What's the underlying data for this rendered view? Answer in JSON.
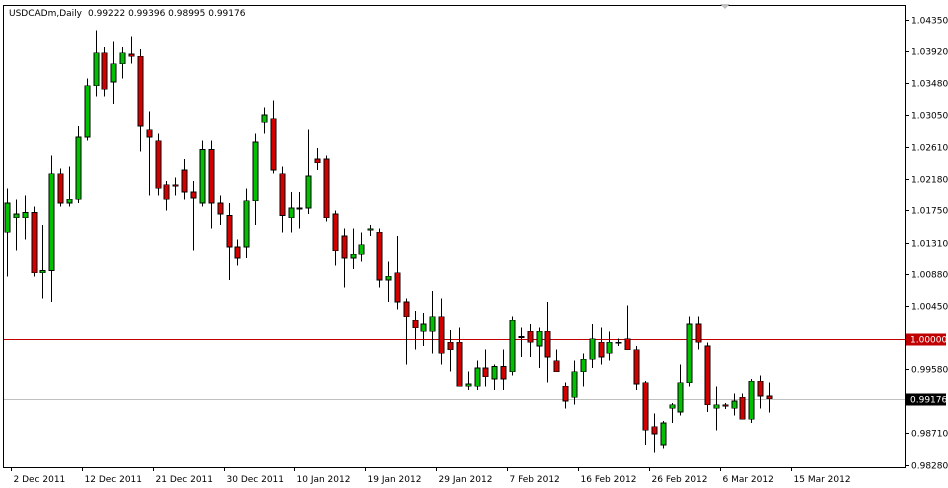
{
  "header": {
    "symbol": "USDCADm,Daily",
    "ohlc": "0.99222 0.99396 0.98995 0.99176"
  },
  "colors": {
    "background": "#ffffff",
    "bull": "#00c000",
    "bear": "#d40000",
    "wick": "#000000",
    "parity_line": "#c00000",
    "current_line": "#c0c0c0",
    "axis": "#000000"
  },
  "chart_data": {
    "type": "candlestick",
    "ylim": [
      0.9825,
      1.0455
    ],
    "y_ticks": [
      "1.04350",
      "1.03920",
      "1.03480",
      "1.03050",
      "1.02610",
      "1.02180",
      "1.01750",
      "1.01310",
      "1.00880",
      "1.00450",
      "0.99580",
      "0.98710",
      "0.98280"
    ],
    "x_labels": [
      {
        "text": "2 Dec 2011",
        "index": 1
      },
      {
        "text": "12 Dec 2011",
        "index": 9
      },
      {
        "text": "21 Dec 2011",
        "index": 17
      },
      {
        "text": "30 Dec 2011",
        "index": 25
      },
      {
        "text": "10 Jan 2012",
        "index": 33
      },
      {
        "text": "19 Jan 2012",
        "index": 41
      },
      {
        "text": "29 Jan 2012",
        "index": 49
      },
      {
        "text": "7 Feb 2012",
        "index": 57
      },
      {
        "text": "16 Feb 2012",
        "index": 65
      },
      {
        "text": "26 Feb 2012",
        "index": 73
      },
      {
        "text": "6 Mar 2012",
        "index": 81
      },
      {
        "text": "15 Mar 2012",
        "index": 89
      }
    ],
    "parity_level": {
      "value": 1.0,
      "label": "1.00000"
    },
    "current_price": {
      "value": 0.99176,
      "label": "0.99176"
    },
    "candles": [
      {
        "o": 1.0145,
        "h": 1.0205,
        "l": 1.0085,
        "c": 1.0185
      },
      {
        "o": 1.0165,
        "h": 1.019,
        "l": 1.012,
        "c": 1.017
      },
      {
        "o": 1.0165,
        "h": 1.0195,
        "l": 1.0135,
        "c": 1.0172
      },
      {
        "o": 1.0172,
        "h": 1.018,
        "l": 1.0085,
        "c": 1.009
      },
      {
        "o": 1.009,
        "h": 1.0155,
        "l": 1.0055,
        "c": 1.0093
      },
      {
        "o": 1.0093,
        "h": 1.025,
        "l": 1.005,
        "c": 1.0225
      },
      {
        "o": 1.0225,
        "h": 1.0232,
        "l": 1.018,
        "c": 1.0185
      },
      {
        "o": 1.0185,
        "h": 1.0235,
        "l": 1.018,
        "c": 1.019
      },
      {
        "o": 1.019,
        "h": 1.029,
        "l": 1.0185,
        "c": 1.0275
      },
      {
        "o": 1.0275,
        "h": 1.0355,
        "l": 1.027,
        "c": 1.0345
      },
      {
        "o": 1.0345,
        "h": 1.042,
        "l": 1.033,
        "c": 1.039
      },
      {
        "o": 1.039,
        "h": 1.0398,
        "l": 1.033,
        "c": 1.034
      },
      {
        "o": 1.035,
        "h": 1.0405,
        "l": 1.032,
        "c": 1.0375
      },
      {
        "o": 1.0375,
        "h": 1.0398,
        "l": 1.0355,
        "c": 1.039
      },
      {
        "o": 1.0388,
        "h": 1.0412,
        "l": 1.0375,
        "c": 1.0385
      },
      {
        "o": 1.0385,
        "h": 1.0395,
        "l": 1.0255,
        "c": 1.029
      },
      {
        "o": 1.0285,
        "h": 1.031,
        "l": 1.0195,
        "c": 1.0275
      },
      {
        "o": 1.027,
        "h": 1.028,
        "l": 1.0195,
        "c": 1.0205
      },
      {
        "o": 1.021,
        "h": 1.0215,
        "l": 1.0175,
        "c": 1.019
      },
      {
        "o": 1.021,
        "h": 1.022,
        "l": 1.0195,
        "c": 1.0208
      },
      {
        "o": 1.023,
        "h": 1.0245,
        "l": 1.019,
        "c": 1.02
      },
      {
        "o": 1.02,
        "h": 1.0215,
        "l": 1.012,
        "c": 1.0192
      },
      {
        "o": 1.0185,
        "h": 1.027,
        "l": 1.018,
        "c": 1.0258
      },
      {
        "o": 1.0258,
        "h": 1.027,
        "l": 1.015,
        "c": 1.0185
      },
      {
        "o": 1.0185,
        "h": 1.0195,
        "l": 1.0155,
        "c": 1.017
      },
      {
        "o": 1.0168,
        "h": 1.0185,
        "l": 1.008,
        "c": 1.0125
      },
      {
        "o": 1.0125,
        "h": 1.0135,
        "l": 1.01,
        "c": 1.011
      },
      {
        "o": 1.0125,
        "h": 1.0205,
        "l": 1.011,
        "c": 1.0188
      },
      {
        "o": 1.0188,
        "h": 1.028,
        "l": 1.0155,
        "c": 1.0268
      },
      {
        "o": 1.0295,
        "h": 1.0315,
        "l": 1.028,
        "c": 1.0305
      },
      {
        "o": 1.03,
        "h": 1.0325,
        "l": 1.0225,
        "c": 1.023
      },
      {
        "o": 1.0225,
        "h": 1.0235,
        "l": 1.0145,
        "c": 1.0168
      },
      {
        "o": 1.0165,
        "h": 1.02,
        "l": 1.0145,
        "c": 1.0178
      },
      {
        "o": 1.0178,
        "h": 1.02,
        "l": 1.015,
        "c": 1.0178
      },
      {
        "o": 1.0178,
        "h": 1.0285,
        "l": 1.017,
        "c": 1.0222
      },
      {
        "o": 1.0245,
        "h": 1.026,
        "l": 1.023,
        "c": 1.024
      },
      {
        "o": 1.0245,
        "h": 1.025,
        "l": 1.016,
        "c": 1.0165
      },
      {
        "o": 1.017,
        "h": 1.0175,
        "l": 1.01,
        "c": 1.012
      },
      {
        "o": 1.014,
        "h": 1.015,
        "l": 1.007,
        "c": 1.011
      },
      {
        "o": 1.011,
        "h": 1.015,
        "l": 1.0095,
        "c": 1.0115
      },
      {
        "o": 1.0115,
        "h": 1.0145,
        "l": 1.0105,
        "c": 1.0128
      },
      {
        "o": 1.0148,
        "h": 1.0155,
        "l": 1.014,
        "c": 1.015
      },
      {
        "o": 1.0145,
        "h": 1.015,
        "l": 1.007,
        "c": 1.008
      },
      {
        "o": 1.008,
        "h": 1.0105,
        "l": 1.005,
        "c": 1.0085
      },
      {
        "o": 1.009,
        "h": 1.014,
        "l": 1.004,
        "c": 1.005
      },
      {
        "o": 1.005,
        "h": 1.0055,
        "l": 0.9965,
        "c": 1.003
      },
      {
        "o": 1.0025,
        "h": 1.0038,
        "l": 0.9985,
        "c": 1.0015
      },
      {
        "o": 1.001,
        "h": 1.0035,
        "l": 0.999,
        "c": 1.002
      },
      {
        "o": 1.001,
        "h": 1.0065,
        "l": 0.998,
        "c": 1.003
      },
      {
        "o": 1.003,
        "h": 1.0055,
        "l": 0.9965,
        "c": 0.998
      },
      {
        "o": 0.9995,
        "h": 1.0012,
        "l": 0.9955,
        "c": 0.9985
      },
      {
        "o": 0.9995,
        "h": 1.0015,
        "l": 0.9935,
        "c": 0.9935
      },
      {
        "o": 0.9935,
        "h": 0.9955,
        "l": 0.993,
        "c": 0.9938
      },
      {
        "o": 0.9935,
        "h": 0.997,
        "l": 0.993,
        "c": 0.996
      },
      {
        "o": 0.996,
        "h": 0.9985,
        "l": 0.9935,
        "c": 0.9948
      },
      {
        "o": 0.9945,
        "h": 0.9965,
        "l": 0.993,
        "c": 0.9962
      },
      {
        "o": 0.9962,
        "h": 0.9985,
        "l": 0.993,
        "c": 0.9945
      },
      {
        "o": 0.9955,
        "h": 1.003,
        "l": 0.995,
        "c": 1.0025
      },
      {
        "o": 1.0003,
        "h": 1.0015,
        "l": 0.9975,
        "c": 1.0003
      },
      {
        "o": 1.001,
        "h": 1.002,
        "l": 0.9975,
        "c": 0.9995
      },
      {
        "o": 0.999,
        "h": 1.0015,
        "l": 0.996,
        "c": 1.001
      },
      {
        "o": 1.001,
        "h": 1.005,
        "l": 0.994,
        "c": 0.9975
      },
      {
        "o": 0.997,
        "h": 0.9985,
        "l": 0.9955,
        "c": 0.9955
      },
      {
        "o": 0.9935,
        "h": 0.994,
        "l": 0.9905,
        "c": 0.9915
      },
      {
        "o": 0.992,
        "h": 0.997,
        "l": 0.991,
        "c": 0.9955
      },
      {
        "o": 0.9955,
        "h": 0.998,
        "l": 0.9935,
        "c": 0.9972
      },
      {
        "o": 0.9972,
        "h": 1.002,
        "l": 0.996,
        "c": 1.0
      },
      {
        "o": 0.9995,
        "h": 1.0015,
        "l": 0.9965,
        "c": 0.9975
      },
      {
        "o": 0.998,
        "h": 1.001,
        "l": 0.997,
        "c": 0.9995
      },
      {
        "o": 0.9995,
        "h": 1.0,
        "l": 0.999,
        "c": 0.9995
      },
      {
        "o": 1.0,
        "h": 1.0045,
        "l": 0.9985,
        "c": 0.9985
      },
      {
        "o": 0.9985,
        "h": 0.999,
        "l": 0.993,
        "c": 0.9938
      },
      {
        "o": 0.994,
        "h": 0.9942,
        "l": 0.9855,
        "c": 0.9875
      },
      {
        "o": 0.988,
        "h": 0.9898,
        "l": 0.9845,
        "c": 0.987
      },
      {
        "o": 0.9855,
        "h": 0.9888,
        "l": 0.985,
        "c": 0.9885
      },
      {
        "o": 0.9905,
        "h": 0.9912,
        "l": 0.9885,
        "c": 0.991
      },
      {
        "o": 0.99,
        "h": 0.9965,
        "l": 0.9895,
        "c": 0.994
      },
      {
        "o": 0.994,
        "h": 1.003,
        "l": 0.9935,
        "c": 1.002
      },
      {
        "o": 1.002,
        "h": 1.003,
        "l": 0.9985,
        "c": 0.9995
      },
      {
        "o": 0.999,
        "h": 0.9995,
        "l": 0.99,
        "c": 0.991
      },
      {
        "o": 0.9905,
        "h": 0.9935,
        "l": 0.9875,
        "c": 0.991
      },
      {
        "o": 0.991,
        "h": 0.9912,
        "l": 0.9904,
        "c": 0.9908
      },
      {
        "o": 0.9905,
        "h": 0.9925,
        "l": 0.9895,
        "c": 0.9915
      },
      {
        "o": 0.992,
        "h": 0.9925,
        "l": 0.989,
        "c": 0.989
      },
      {
        "o": 0.989,
        "h": 0.9945,
        "l": 0.9885,
        "c": 0.9942
      },
      {
        "o": 0.9942,
        "h": 0.995,
        "l": 0.9905,
        "c": 0.9922
      },
      {
        "o": 0.9922,
        "h": 0.994,
        "l": 0.9899,
        "c": 0.9918
      }
    ]
  }
}
